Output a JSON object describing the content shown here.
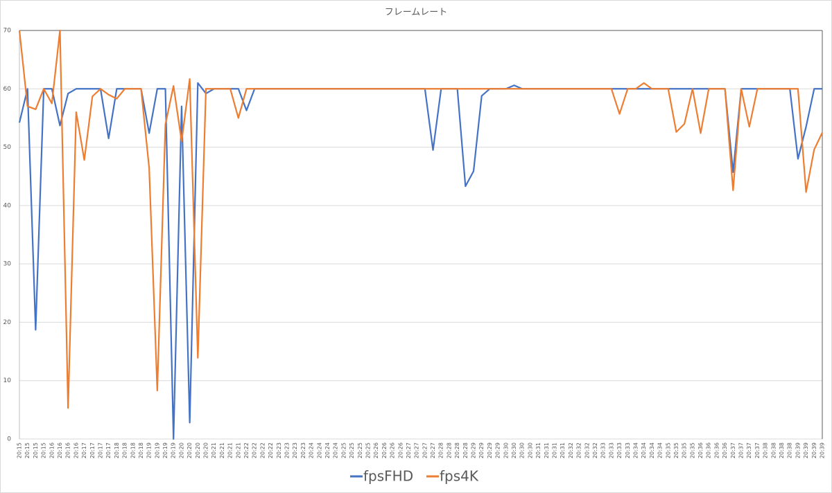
{
  "chart_data": {
    "type": "line",
    "title": "フレームレート",
    "categories": [
      "20:15",
      "20:15",
      "20:15",
      "20:15",
      "20:16",
      "20:16",
      "20:16",
      "20:16",
      "20:17",
      "20:17",
      "20:17",
      "20:17",
      "20:18",
      "20:18",
      "20:18",
      "20:18",
      "20:19",
      "20:19",
      "20:19",
      "20:19",
      "20:20",
      "20:20",
      "20:20",
      "20:20",
      "20:21",
      "20:21",
      "20:21",
      "20:21",
      "20:22",
      "20:22",
      "20:22",
      "20:22",
      "20:23",
      "20:23",
      "20:23",
      "20:23",
      "20:24",
      "20:24",
      "20:24",
      "20:24",
      "20:25",
      "20:25",
      "20:25",
      "20:25",
      "20:26",
      "20:26",
      "20:26",
      "20:26",
      "20:27",
      "20:27",
      "20:27",
      "20:27",
      "20:28",
      "20:28",
      "20:28",
      "20:28",
      "20:29",
      "20:29",
      "20:29",
      "20:29",
      "20:30",
      "20:30",
      "20:30",
      "20:30",
      "20:31",
      "20:31",
      "20:31",
      "20:31",
      "20:32",
      "20:32",
      "20:32",
      "20:32",
      "20:33",
      "20:33",
      "20:33",
      "20:33",
      "20:34",
      "20:34",
      "20:34",
      "20:34",
      "20:35",
      "20:35",
      "20:35",
      "20:35",
      "20:36",
      "20:36",
      "20:36",
      "20:36",
      "20:37",
      "20:37",
      "20:37",
      "20:37",
      "20:38",
      "20:38",
      "20:38",
      "20:38",
      "20:39",
      "20:39",
      "20:39",
      "20:39"
    ],
    "series": [
      {
        "name": "fpsFHD",
        "color": "#4472c4",
        "values": [
          54.2,
          60,
          18.7,
          60,
          60,
          53.7,
          59.2,
          60,
          60,
          60,
          60,
          51.5,
          60,
          60,
          60,
          60,
          52.4,
          60,
          60,
          0,
          57,
          2.8,
          61,
          59.2,
          60,
          60,
          60,
          60,
          56.3,
          60,
          60,
          60,
          60,
          60,
          60,
          60,
          60,
          60,
          60,
          60,
          60,
          60,
          60,
          60,
          60,
          60,
          60,
          60,
          60,
          60,
          60,
          49.5,
          60,
          60,
          60,
          43.3,
          45.9,
          58.8,
          60,
          60,
          60,
          60.6,
          60,
          60,
          60,
          60,
          60,
          60,
          60,
          60,
          60,
          60,
          60,
          60,
          60,
          60,
          60,
          60,
          60,
          60,
          60,
          60,
          60,
          60,
          60,
          60,
          60,
          60,
          45.7,
          60,
          60,
          60,
          60,
          60,
          60,
          60,
          48,
          53.5,
          60,
          60
        ]
      },
      {
        "name": "fps4K",
        "color": "#ed7d31",
        "values": [
          70,
          57,
          56.5,
          60,
          57.5,
          70,
          5.3,
          56,
          47.8,
          58.7,
          60,
          59,
          58.3,
          60,
          60,
          60,
          46.4,
          8.3,
          53.9,
          60.5,
          51,
          61.7,
          13.9,
          60,
          60,
          60,
          60,
          55,
          60,
          60,
          60,
          60,
          60,
          60,
          60,
          60,
          60,
          60,
          60,
          60,
          60,
          60,
          60,
          60,
          60,
          60,
          60,
          60,
          60,
          60,
          60,
          60,
          60,
          60,
          60,
          60,
          60,
          60,
          60,
          60,
          60,
          60,
          60,
          60,
          60,
          60,
          60,
          60,
          60,
          60,
          60,
          60,
          60,
          60,
          55.7,
          60,
          60,
          61,
          60,
          60,
          60,
          52.6,
          54,
          60,
          52.4,
          60,
          60,
          60,
          42.6,
          60,
          53.5,
          60,
          60,
          60,
          60,
          60,
          60,
          42.3,
          49.6,
          52.5
        ]
      }
    ],
    "ylim": [
      0,
      70
    ],
    "yticks": [
      0,
      10,
      20,
      30,
      40,
      50,
      60,
      70
    ],
    "grid": true
  }
}
